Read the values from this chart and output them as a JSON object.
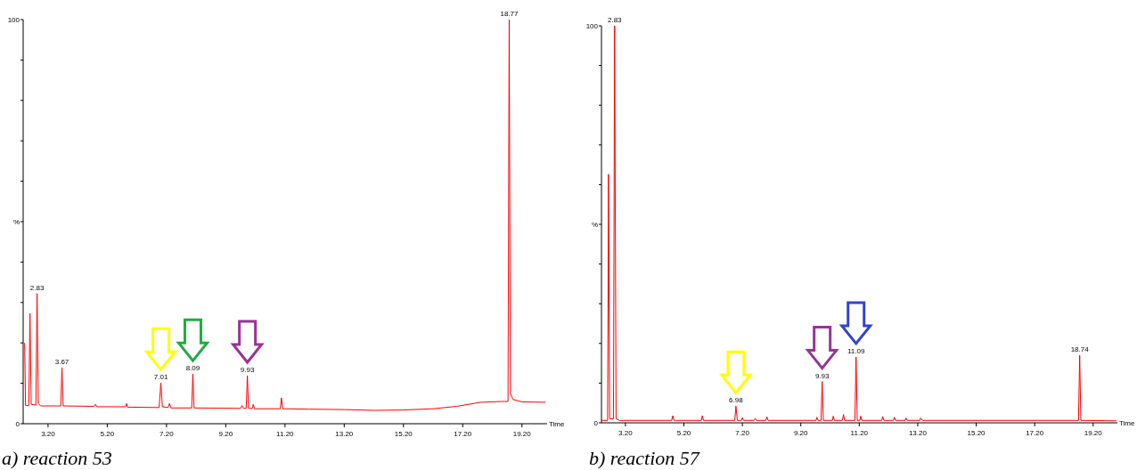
{
  "chart_data": [
    {
      "type": "line",
      "title": "a) reaction 53",
      "xlabel": "Time",
      "xlim": [
        2.36,
        20.05
      ],
      "ylim": [
        0,
        100
      ],
      "xticks": [
        {
          "value": 3.2,
          "label": "3.20"
        },
        {
          "value": 5.2,
          "label": "5.20"
        },
        {
          "value": 7.2,
          "label": "7.20"
        },
        {
          "value": 9.2,
          "label": "9.20"
        },
        {
          "value": 11.2,
          "label": "11.20"
        },
        {
          "value": 13.2,
          "label": "13.20"
        },
        {
          "value": 15.2,
          "label": "15.20"
        },
        {
          "value": 17.2,
          "label": "17.20"
        },
        {
          "value": 19.2,
          "label": "19.20"
        }
      ],
      "yticks": [
        {
          "value": 0,
          "label": "0"
        },
        {
          "value": 10,
          "label": null
        },
        {
          "value": 20,
          "label": null
        },
        {
          "value": 30,
          "label": null
        },
        {
          "value": 40,
          "label": null
        },
        {
          "value": 50,
          "label": "%"
        },
        {
          "value": 60,
          "label": null
        },
        {
          "value": 70,
          "label": null
        },
        {
          "value": 80,
          "label": null
        },
        {
          "value": 90,
          "label": null
        },
        {
          "value": 100,
          "label": "100"
        }
      ],
      "grid": false,
      "series": [
        {
          "color": "#ff0000",
          "x": [
            2.41,
            2.44,
            2.55,
            2.59,
            2.63,
            2.79,
            2.83,
            2.87,
            2.95,
            3.63,
            3.67,
            3.71,
            4.75,
            4.8,
            4.85,
            5.82,
            5.85,
            5.88,
            6.95,
            7.01,
            7.06,
            7.25,
            7.3,
            7.35,
            8.05,
            8.09,
            8.13,
            9.7,
            9.75,
            9.8,
            9.89,
            9.93,
            9.97,
            10.1,
            10.13,
            10.17,
            11.04,
            11.08,
            11.12,
            12.0,
            13.2,
            14.2,
            15.2,
            16.2,
            17.0,
            17.8,
            18.5,
            18.73,
            18.77,
            18.81,
            18.9,
            19.2,
            20.0
          ],
          "values": [
            20,
            4.5,
            4.5,
            27.3,
            4.8,
            4.6,
            32.2,
            5.0,
            4.4,
            4.4,
            13.9,
            4.4,
            4.3,
            4.8,
            4.2,
            4.2,
            5.0,
            4.1,
            4.0,
            10.1,
            4.2,
            4.0,
            5.0,
            3.9,
            3.9,
            12.3,
            3.9,
            3.8,
            4.5,
            3.8,
            3.8,
            11.9,
            3.8,
            3.8,
            4.8,
            3.7,
            3.7,
            6.4,
            3.7,
            3.6,
            3.5,
            3.3,
            3.4,
            3.7,
            4.3,
            5.3,
            5.5,
            5.5,
            100,
            7.5,
            6.0,
            5.4,
            5.3
          ]
        }
      ],
      "annotations": [
        {
          "text": "2.83",
          "x": 2.83,
          "y": 32.2
        },
        {
          "text": "3.67",
          "x": 3.67,
          "y": 13.9
        },
        {
          "text": "7.01",
          "x": 7.01,
          "y": 10.1
        },
        {
          "text": "8.09",
          "x": 8.09,
          "y": 12.3
        },
        {
          "text": "9.93",
          "x": 9.93,
          "y": 11.9
        },
        {
          "text": "18.77",
          "x": 18.77,
          "y": 100
        }
      ]
    },
    {
      "type": "line",
      "title": "b) reaction 57",
      "xlabel": "Time",
      "xlim": [
        2.38,
        20.03
      ],
      "ylim": [
        0,
        100
      ],
      "xticks": [
        {
          "value": 3.2,
          "label": "3.20"
        },
        {
          "value": 5.2,
          "label": "5.20"
        },
        {
          "value": 7.2,
          "label": "7.20"
        },
        {
          "value": 9.2,
          "label": "9.20"
        },
        {
          "value": 11.2,
          "label": "11.20"
        },
        {
          "value": 13.2,
          "label": "13.20"
        },
        {
          "value": 15.2,
          "label": "15.20"
        },
        {
          "value": 17.2,
          "label": "17.20"
        },
        {
          "value": 19.2,
          "label": "19.20"
        }
      ],
      "yticks": [
        {
          "value": 0,
          "label": "0"
        },
        {
          "value": 10,
          "label": null
        },
        {
          "value": 20,
          "label": null
        },
        {
          "value": 30,
          "label": null
        },
        {
          "value": 40,
          "label": null
        },
        {
          "value": 50,
          "label": "%"
        },
        {
          "value": 60,
          "label": null
        },
        {
          "value": 70,
          "label": null
        },
        {
          "value": 80,
          "label": null
        },
        {
          "value": 90,
          "label": null
        },
        {
          "value": 100,
          "label": "100"
        }
      ],
      "grid": false,
      "series": [
        {
          "color": "#ff0000",
          "x": [
            2.39,
            2.59,
            2.62,
            2.66,
            2.79,
            2.83,
            2.88,
            3.0,
            4.78,
            4.82,
            4.86,
            5.8,
            5.83,
            5.87,
            6.94,
            6.98,
            7.03,
            7.17,
            7.2,
            7.24,
            7.6,
            7.64,
            7.68,
            8.0,
            8.04,
            8.08,
            9.72,
            9.75,
            9.79,
            9.89,
            9.93,
            9.97,
            10.28,
            10.31,
            10.35,
            10.62,
            10.66,
            10.7,
            11.05,
            11.09,
            11.13,
            11.22,
            11.25,
            11.29,
            11.97,
            12.0,
            12.04,
            12.37,
            12.4,
            12.44,
            12.77,
            12.8,
            12.84,
            13.27,
            13.3,
            13.36,
            18.7,
            18.74,
            18.78,
            20.0
          ],
          "values": [
            0.6,
            0.6,
            62.6,
            1.0,
            1.0,
            100,
            1.0,
            0.6,
            0.6,
            1.8,
            0.6,
            0.6,
            1.8,
            0.6,
            0.6,
            4.2,
            0.6,
            0.6,
            1.3,
            0.6,
            0.6,
            1.1,
            0.6,
            0.6,
            1.5,
            0.6,
            0.6,
            1.4,
            0.6,
            0.6,
            10.4,
            0.6,
            0.6,
            1.7,
            0.6,
            0.6,
            2.1,
            0.6,
            0.6,
            16.6,
            0.6,
            0.6,
            1.7,
            0.6,
            0.6,
            1.6,
            0.6,
            0.6,
            1.4,
            0.6,
            0.6,
            1.2,
            0.6,
            0.6,
            1.2,
            0.6,
            0.6,
            17.0,
            0.6,
            0.5
          ]
        }
      ],
      "annotations": [
        {
          "text": "2.83",
          "x": 2.83,
          "y": 100
        },
        {
          "text": "6.98",
          "x": 6.98,
          "y": 4.2
        },
        {
          "text": "9.93",
          "x": 9.93,
          "y": 10.4
        },
        {
          "text": "11.09",
          "x": 11.09,
          "y": 16.6
        },
        {
          "text": "18.74",
          "x": 18.74,
          "y": 17.0
        }
      ]
    }
  ]
}
